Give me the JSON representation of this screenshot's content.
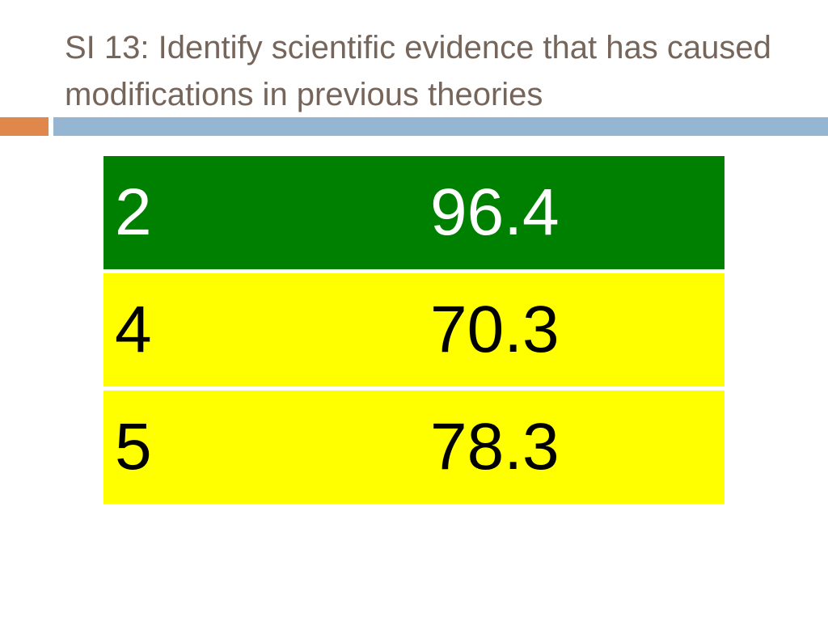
{
  "header": {
    "title": "SI 13: Identify scientific evidence that has caused modifications in previous theories"
  },
  "table": {
    "rows": [
      [
        "2",
        "96.4"
      ],
      [
        "4",
        "70.3"
      ],
      [
        "5",
        "78.3"
      ]
    ]
  }
}
